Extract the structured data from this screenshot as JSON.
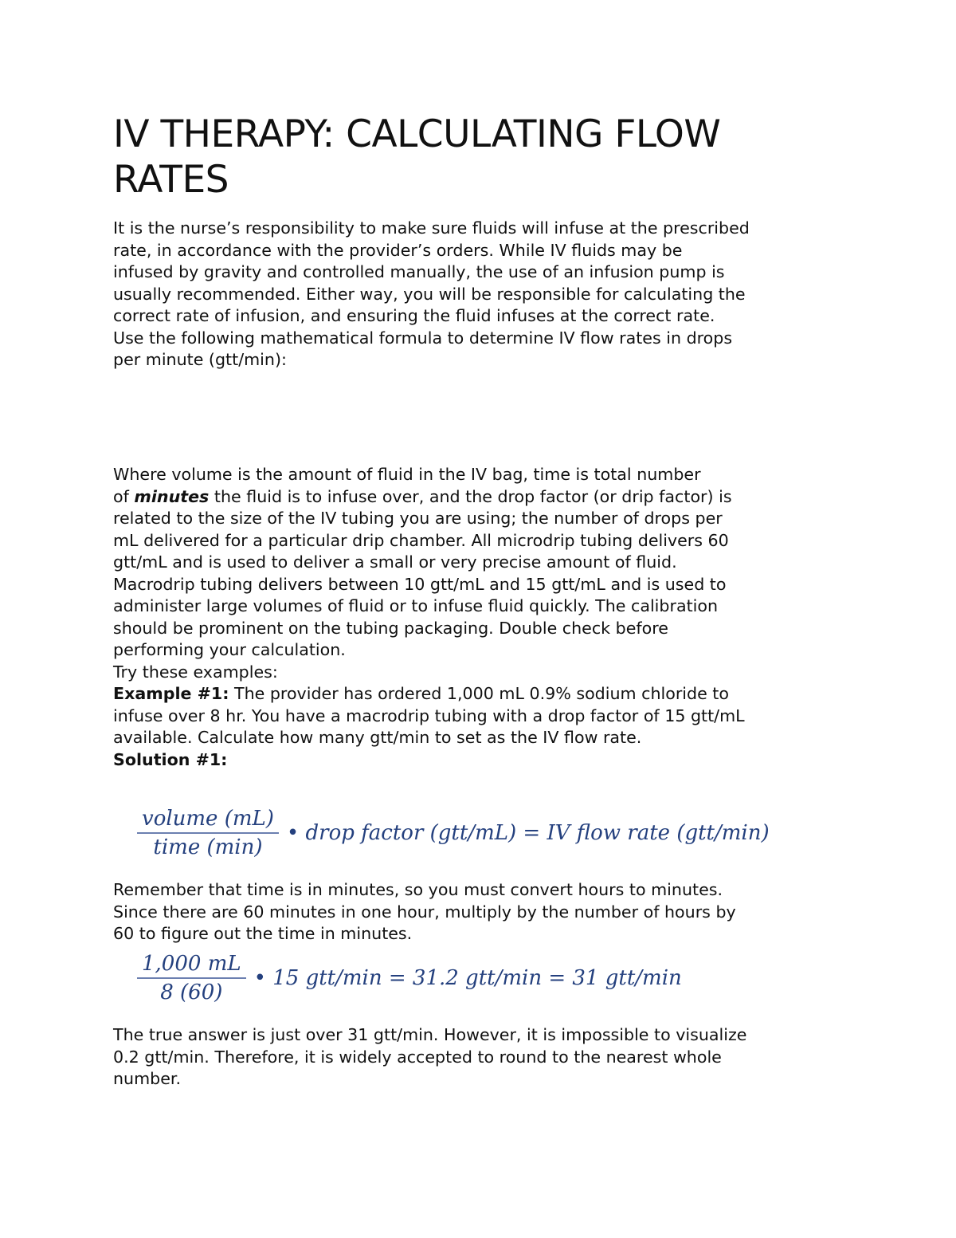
{
  "title": [
    "IV THERAPY: CALCULATING FLOW",
    "RATES"
  ],
  "intro_lines": [
    "It is the nurse’s responsibility to make sure fluids will infuse at the prescribed",
    "rate, in accordance with the provider’s orders.  While IV fluids may be",
    "infused by gravity and controlled manually, the use of an infusion pump is",
    "usually recommended.  Either way, you will be responsible for calculating the",
    "correct rate of infusion, and ensuring the fluid infuses at the correct rate.",
    "Use the following mathematical formula to determine IV flow rates in drops",
    "per minute (gtt/min):"
  ],
  "where": {
    "line0": "Where volume is the amount of fluid in the IV bag, time is total number",
    "line1_pre": "of ",
    "line1_em": "minutes",
    "line1_post": " the fluid is to infuse over, and the drop factor (or drip factor) is",
    "lines": [
      "related to the size of the IV tubing you are using; the number of drops per",
      "mL delivered for a particular drip chamber.  All microdrip tubing delivers 60",
      "gtt/mL and is used to deliver a small or very precise amount of fluid.",
      "Macrodrip tubing delivers between 10 gtt/mL and 15 gtt/mL and is used to",
      "administer large volumes of fluid or to infuse fluid quickly.  The calibration",
      "should be prominent on the tubing packaging.  Double check before",
      "performing your calculation.",
      "Try these examples:"
    ]
  },
  "example1": {
    "label": "Example #1:",
    "line0": " The provider has ordered 1,000 mL 0.9% sodium chloride to",
    "line1": "infuse over 8 hr. You have a macrodrip tubing with a drop factor of 15 gtt/mL",
    "line2": "available. Calculate how many gtt/min to set as the IV flow rate.",
    "solution_label": "Solution #1:"
  },
  "formula1": {
    "numerator": "volume (mL)",
    "denominator": "time (min)",
    "rest": "• drop factor (gtt/mL) = IV flow rate (gtt/min)"
  },
  "remember_lines": [
    "Remember that time is in minutes, so you must convert hours to minutes.",
    "Since there are 60 minutes in one hour, multiply by the number of hours by",
    "60 to figure out the time in minutes."
  ],
  "formula2": {
    "numerator": "1,000 mL",
    "denominator": "8 (60)",
    "rest": "• 15 gtt/min = 31.2 gtt/min = 31 gtt/min"
  },
  "closing_lines": [
    "The true answer is just over 31 gtt/min.  However, it is impossible to visualize",
    "0.2 gtt/min.  Therefore, it is widely accepted to round to the nearest whole",
    "number."
  ]
}
